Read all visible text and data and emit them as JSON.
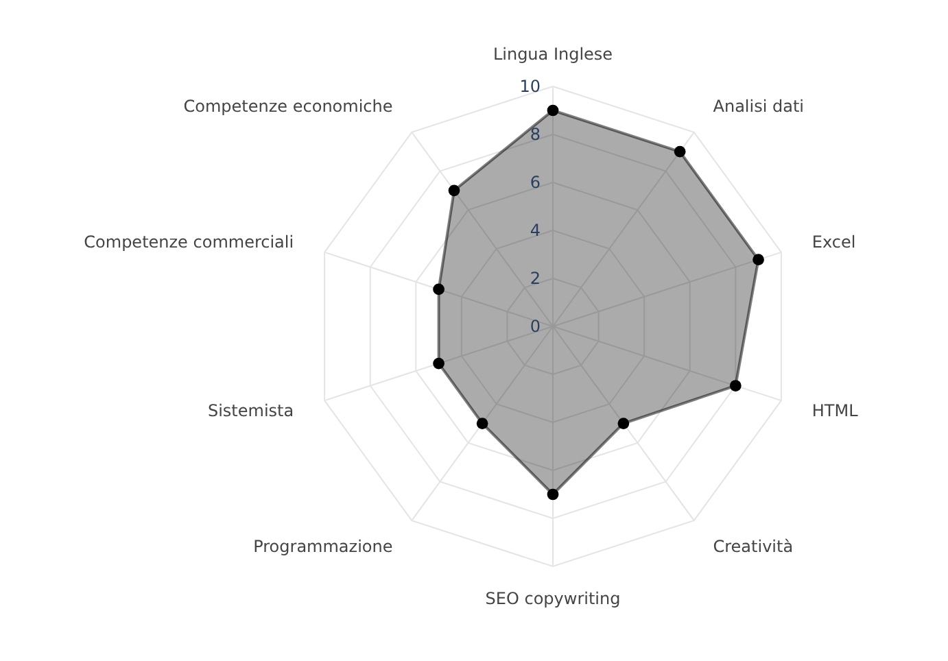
{
  "chart_data": {
    "type": "radar",
    "categories": [
      "Lingua Inglese",
      "Analisi dati",
      "Excel",
      "HTML",
      "Creatività",
      "SEO copywriting",
      "Programmazione",
      "Sistemista",
      "Competenze commerciali",
      "Competenze economiche"
    ],
    "series": [
      {
        "color": "#000000",
        "values": [
          9,
          9,
          9,
          8,
          5,
          7,
          5,
          5,
          5,
          7
        ]
      }
    ],
    "ylim": [
      0,
      10
    ],
    "yticks": [
      0,
      2,
      4,
      6,
      8,
      10
    ],
    "grid": true,
    "marker": "circle",
    "line_style": "solid"
  }
}
